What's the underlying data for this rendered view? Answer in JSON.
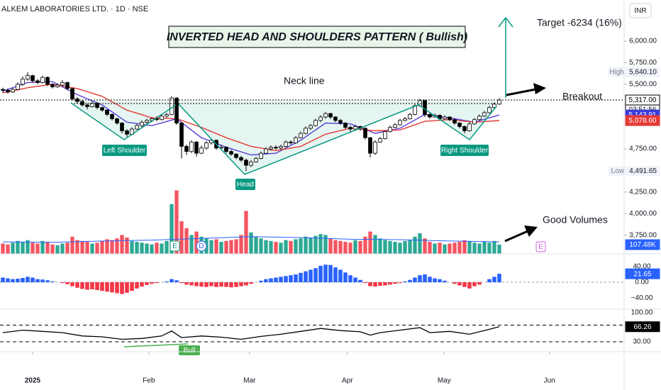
{
  "header": {
    "title": "ALKEM LABORATORIES LTD. · 1D · NSE",
    "currency": "INR"
  },
  "annotations": {
    "pattern": "INVERTED HEAD AND SHOULDERS PATTERN ( Bullish)",
    "target": "Target -6234 (16%)",
    "neckline": "Neck line",
    "breakout": "Breakout",
    "good_volumes": "Good Volumes",
    "left_shoulder": "Left Shoulder",
    "head": "Head",
    "right_shoulder": "Right Shoulder",
    "bull": "Bull",
    "earnings_1": "E",
    "dividend": "D",
    "earnings_2": "E"
  },
  "chart_data": {
    "type": "candlestick",
    "xlim": [
      -0.5714,
      125.1429
    ],
    "xticks": [
      {
        "value": 6,
        "label": "2025"
      },
      {
        "value": 29.4,
        "label": "Feb"
      },
      {
        "value": 49.7,
        "label": "Mar"
      },
      {
        "value": 69.4,
        "label": "Apr"
      },
      {
        "value": 88.9,
        "label": "May"
      },
      {
        "value": 110.1,
        "label": "Jun"
      }
    ],
    "ylim": [
      3533,
      6477
    ],
    "yticks": [
      {
        "value": 6000,
        "label": "6,000.00"
      },
      {
        "value": 5750,
        "label": "5,750.00"
      },
      {
        "value": 5500,
        "label": "5,500.00"
      },
      {
        "value": 4750,
        "label": "4,750.00"
      },
      {
        "value": 4250,
        "label": "4,250.00"
      },
      {
        "value": 4000,
        "label": "4,000.00"
      },
      {
        "value": 3750,
        "label": "3,750.00"
      }
    ],
    "up_color": "#089981",
    "down_color": "#f23645",
    "ohlc": [
      [
        5440,
        5460,
        5400,
        5430
      ],
      [
        5430,
        5450,
        5390,
        5410
      ],
      [
        5410,
        5460,
        5400,
        5440
      ],
      [
        5440,
        5520,
        5430,
        5500
      ],
      [
        5500,
        5590,
        5480,
        5560
      ],
      [
        5560,
        5640.1,
        5540,
        5600
      ],
      [
        5600,
        5610,
        5520,
        5540
      ],
      [
        5540,
        5560,
        5500,
        5520
      ],
      [
        5520,
        5600,
        5510,
        5580
      ],
      [
        5580,
        5590,
        5480,
        5500
      ],
      [
        5500,
        5510,
        5450,
        5470
      ],
      [
        5470,
        5510,
        5460,
        5490
      ],
      [
        5490,
        5550,
        5480,
        5520
      ],
      [
        5520,
        5530,
        5430,
        5450
      ],
      [
        5450,
        5460,
        5310,
        5330
      ],
      [
        5330,
        5350,
        5280,
        5300
      ],
      [
        5300,
        5320,
        5240,
        5260
      ],
      [
        5260,
        5280,
        5210,
        5240
      ],
      [
        5240,
        5300,
        5230,
        5280
      ],
      [
        5280,
        5290,
        5210,
        5230
      ],
      [
        5230,
        5240,
        5180,
        5200
      ],
      [
        5200,
        5210,
        5130,
        5150
      ],
      [
        5150,
        5160,
        5080,
        5100
      ],
      [
        5100,
        5110,
        5030,
        5050
      ],
      [
        5050,
        5060,
        4930,
        4960
      ],
      [
        4960,
        4980,
        4890,
        4920
      ],
      [
        4920,
        5000,
        4910,
        4980
      ],
      [
        4980,
        5040,
        4970,
        5020
      ],
      [
        5020,
        5080,
        5000,
        5060
      ],
      [
        5060,
        5100,
        5040,
        5080
      ],
      [
        5080,
        5120,
        5060,
        5100
      ],
      [
        5100,
        5130,
        5070,
        5090
      ],
      [
        5090,
        5150,
        5080,
        5130
      ],
      [
        5130,
        5170,
        5110,
        5150
      ],
      [
        5150,
        5360,
        5140,
        5340
      ],
      [
        5340,
        5350,
        5030,
        5050
      ],
      [
        5050,
        5060,
        4640,
        4780
      ],
      [
        4780,
        4800,
        4680,
        4720
      ],
      [
        4720,
        4850,
        4700,
        4830
      ],
      [
        4830,
        4840,
        4660,
        4700
      ],
      [
        4700,
        4790,
        4690,
        4760
      ],
      [
        4760,
        4840,
        4740,
        4820
      ],
      [
        4820,
        4870,
        4800,
        4850
      ],
      [
        4850,
        4860,
        4740,
        4760
      ],
      [
        4760,
        4800,
        4740,
        4770
      ],
      [
        4770,
        4780,
        4700,
        4720
      ],
      [
        4720,
        4740,
        4670,
        4690
      ],
      [
        4690,
        4700,
        4630,
        4650
      ],
      [
        4650,
        4670,
        4600,
        4620
      ],
      [
        4620,
        4640,
        4491.65,
        4560
      ],
      [
        4560,
        4620,
        4540,
        4600
      ],
      [
        4600,
        4660,
        4590,
        4640
      ],
      [
        4640,
        4720,
        4630,
        4700
      ],
      [
        4700,
        4770,
        4690,
        4750
      ],
      [
        4750,
        4790,
        4730,
        4770
      ],
      [
        4770,
        4790,
        4740,
        4760
      ],
      [
        4760,
        4800,
        4740,
        4780
      ],
      [
        4780,
        4850,
        4770,
        4830
      ],
      [
        4830,
        4850,
        4800,
        4820
      ],
      [
        4820,
        4900,
        4810,
        4880
      ],
      [
        4880,
        4950,
        4870,
        4930
      ],
      [
        4930,
        5010,
        4920,
        4990
      ],
      [
        4990,
        5040,
        4970,
        5020
      ],
      [
        5020,
        5100,
        5010,
        5080
      ],
      [
        5080,
        5140,
        5060,
        5120
      ],
      [
        5120,
        5180,
        5100,
        5160
      ],
      [
        5160,
        5170,
        5100,
        5120
      ],
      [
        5120,
        5130,
        5060,
        5080
      ],
      [
        5080,
        5100,
        5030,
        5050
      ],
      [
        5050,
        5060,
        4980,
        5000
      ],
      [
        5000,
        5020,
        4950,
        4980
      ],
      [
        4980,
        5030,
        4970,
        5010
      ],
      [
        5010,
        5020,
        4960,
        4990
      ],
      [
        4990,
        5000,
        4860,
        4880
      ],
      [
        4880,
        4890,
        4650,
        4700
      ],
      [
        4700,
        4850,
        4680,
        4830
      ],
      [
        4830,
        4890,
        4820,
        4870
      ],
      [
        4870,
        4960,
        4860,
        4950
      ],
      [
        4950,
        5020,
        4940,
        5000
      ],
      [
        5000,
        5050,
        4990,
        5030
      ],
      [
        5030,
        5100,
        5020,
        5080
      ],
      [
        5080,
        5120,
        5070,
        5100
      ],
      [
        5100,
        5170,
        5090,
        5150
      ],
      [
        5150,
        5270,
        5140,
        5250
      ],
      [
        5250,
        5330,
        5240,
        5310
      ],
      [
        5310,
        5320,
        5120,
        5150
      ],
      [
        5150,
        5170,
        5100,
        5120
      ],
      [
        5120,
        5160,
        5110,
        5140
      ],
      [
        5140,
        5150,
        5080,
        5100
      ],
      [
        5100,
        5140,
        5090,
        5120
      ],
      [
        5120,
        5130,
        5070,
        5090
      ],
      [
        5090,
        5100,
        5030,
        5050
      ],
      [
        5050,
        5060,
        4990,
        5010
      ],
      [
        5010,
        5020,
        4930,
        4960
      ],
      [
        4960,
        5060,
        4950,
        5040
      ],
      [
        5040,
        5110,
        5030,
        5090
      ],
      [
        5090,
        5150,
        5080,
        5130
      ],
      [
        5130,
        5190,
        5120,
        5170
      ],
      [
        5170,
        5250,
        5160,
        5230
      ],
      [
        5230,
        5290,
        5220,
        5270
      ],
      [
        5270,
        5340,
        5260,
        5317
      ]
    ],
    "moving_averages": [
      {
        "color": "#5b3fd6",
        "x": [
          0,
          5,
          10,
          15,
          20,
          25,
          30,
          35,
          40,
          45,
          50,
          55,
          60,
          65,
          70,
          75,
          80,
          85,
          90,
          95,
          100
        ],
        "values": [
          5420,
          5520,
          5530,
          5380,
          5260,
          5060,
          5020,
          5100,
          4880,
          4770,
          4680,
          4700,
          4850,
          5050,
          5040,
          4930,
          4990,
          5150,
          5110,
          5060,
          5143.91
        ]
      },
      {
        "color": "#e53935",
        "x": [
          0,
          5,
          10,
          15,
          20,
          25,
          30,
          35,
          40,
          45,
          50,
          55,
          60,
          65,
          70,
          75,
          80,
          85,
          90,
          95,
          100
        ],
        "values": [
          5400,
          5460,
          5500,
          5450,
          5360,
          5200,
          5110,
          5100,
          5000,
          4880,
          4780,
          4730,
          4780,
          4920,
          4990,
          4960,
          4970,
          5070,
          5090,
          5060,
          5078.6
        ]
      }
    ],
    "price_tags": [
      {
        "value": 5317,
        "label": "5,317.00",
        "color": "#ffffff",
        "text_color": "#000000"
      },
      {
        "value": 5143.91,
        "label": "5,143.91",
        "color": "#3d3bd9",
        "text_color": "#ffffff"
      },
      {
        "value": 5078.6,
        "label": "5,078.60",
        "color": "#e53935",
        "text_color": "#ffffff"
      }
    ],
    "countdown": "03:51:56",
    "high": {
      "label": "High",
      "value": 5640.1,
      "value_label": "5,640.10"
    },
    "low": {
      "label": "Low",
      "value": 4491.65,
      "value_label": "4,491.65"
    },
    "volume": {
      "ylim": [
        0,
        2959
      ],
      "values": [
        120,
        110,
        130,
        150,
        140,
        160,
        130,
        120,
        150,
        140,
        110,
        100,
        120,
        130,
        200,
        160,
        150,
        140,
        120,
        130,
        150,
        170,
        160,
        180,
        220,
        190,
        150,
        140,
        130,
        120,
        110,
        130,
        120,
        150,
        580,
        740,
        380,
        300,
        220,
        260,
        200,
        180,
        160,
        170,
        140,
        150,
        160,
        170,
        220,
        500,
        250,
        200,
        180,
        160,
        150,
        140,
        130,
        160,
        150,
        170,
        180,
        200,
        190,
        210,
        230,
        220,
        180,
        160,
        150,
        140,
        130,
        160,
        150,
        200,
        260,
        220,
        180,
        160,
        150,
        140,
        130,
        150,
        160,
        200,
        240,
        180,
        140,
        120,
        130,
        110,
        120,
        130,
        140,
        160,
        150,
        130,
        120,
        140,
        130,
        150,
        107.48
      ],
      "ma": {
        "color": "#2962ff",
        "x": [
          0,
          10,
          20,
          30,
          40,
          50,
          60,
          70,
          80,
          90,
          100
        ],
        "values": [
          140,
          135,
          150,
          160,
          180,
          200,
          190,
          170,
          165,
          150,
          140
        ]
      },
      "tag": {
        "value": 107.48,
        "label": "107.48K",
        "color": "#2962ff"
      }
    },
    "macd": {
      "type": "bar",
      "ylim": [
        -67,
        69
      ],
      "pos_color": "#2962ff",
      "neg_color": "#f23645",
      "yticks": [
        {
          "value": 40,
          "label": "40.00"
        },
        {
          "value": 0,
          "label": "0.00"
        },
        {
          "value": -40,
          "label": "−40.00"
        }
      ],
      "values": [
        12,
        10,
        8,
        9,
        11,
        14,
        12,
        8,
        7,
        5,
        2,
        0,
        -2,
        -5,
        -10,
        -14,
        -17,
        -19,
        -18,
        -20,
        -22,
        -24,
        -26,
        -28,
        -30,
        -27,
        -22,
        -16,
        -11,
        -7,
        -4,
        -2,
        0,
        2,
        8,
        5,
        -2,
        -6,
        -8,
        -10,
        -11,
        -12,
        -10,
        -12,
        -11,
        -12,
        -13,
        -12,
        -10,
        -8,
        -4,
        0,
        4,
        8,
        10,
        12,
        14,
        16,
        18,
        20,
        24,
        28,
        32,
        36,
        42,
        45,
        44,
        38,
        32,
        25,
        18,
        12,
        6,
        -2,
        -10,
        -11,
        -9,
        -8,
        -6,
        -4,
        -2,
        2,
        6,
        12,
        18,
        20,
        14,
        10,
        8,
        4,
        0,
        -4,
        -8,
        -12,
        -16,
        -10,
        -6,
        0,
        8,
        14,
        21.65
      ],
      "tag": {
        "value": 21.65,
        "label": "21.65",
        "color": "#2962ff"
      }
    },
    "rsi": {
      "type": "line",
      "ylim": [
        7.8,
        106.8
      ],
      "color": "#000000",
      "yticks": [
        {
          "value": 100,
          "label": "100.00"
        },
        {
          "value": 30,
          "label": "30.00"
        }
      ],
      "levels": [
        70,
        30
      ],
      "x": [
        0,
        4,
        8,
        12,
        16,
        20,
        24,
        28,
        32,
        34,
        36,
        40,
        44,
        48,
        52,
        56,
        60,
        64,
        68,
        72,
        74,
        76,
        80,
        84,
        86,
        90,
        94,
        98,
        100
      ],
      "values": [
        52,
        58,
        55,
        52,
        44,
        42,
        36,
        38,
        44,
        56,
        40,
        44,
        41,
        36,
        43,
        48,
        55,
        62,
        57,
        54,
        46,
        52,
        58,
        64,
        52,
        55,
        48,
        60,
        66.26
      ],
      "tag": {
        "value": 66.26,
        "label": "66.26",
        "color": "#000000"
      }
    }
  }
}
